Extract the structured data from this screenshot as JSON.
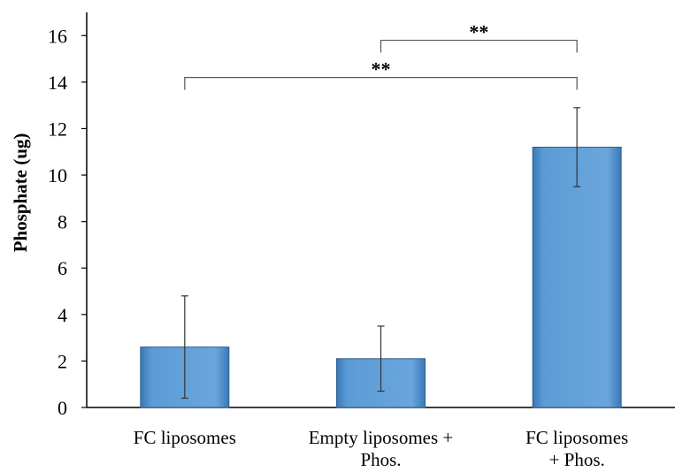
{
  "chart_data": {
    "type": "bar",
    "title": "",
    "xlabel": "",
    "ylabel": "Phosphate (ug)",
    "ylim": [
      0,
      17
    ],
    "yticks": [
      0,
      2,
      4,
      6,
      8,
      10,
      12,
      14,
      16
    ],
    "grid": false,
    "categories": [
      [
        "FC liposomes"
      ],
      [
        "Empty liposomes +",
        "Phos."
      ],
      [
        "FC liposomes",
        "+ Phos."
      ]
    ],
    "values": [
      2.6,
      2.1,
      11.2
    ],
    "error_low": [
      0.4,
      0.7,
      9.5
    ],
    "error_high": [
      4.8,
      3.5,
      12.9
    ],
    "bar_color": "#5b9bd5",
    "significance": [
      {
        "from": 1,
        "to": 2,
        "y": 15.8,
        "label": "**"
      },
      {
        "from": 0,
        "to": 2,
        "y": 14.2,
        "label": "**"
      }
    ]
  }
}
